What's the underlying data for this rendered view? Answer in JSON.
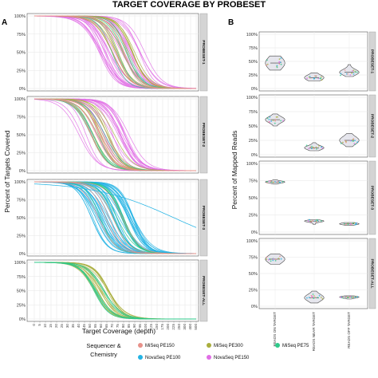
{
  "figure_title": "TARGET COVERAGE BY PROBESET",
  "panel_labels": {
    "a": "A",
    "b": "B"
  },
  "colors": {
    "MiSeq PE150": "#e8918a",
    "MiSeq PE300": "#a9ae3d",
    "MiSeq PE75": "#2ec98a",
    "NovaSeq PE100": "#23b3e4",
    "NovaSeq PE150": "#e06ee5"
  },
  "legend": {
    "title_line1": "Sequencer &",
    "title_line2": "Chemistry",
    "items": [
      "MiSeq PE150",
      "MiSeq PE300",
      "MiSeq PE75",
      "NovaSeq PE100",
      "NovaSeq PE150"
    ]
  },
  "chart_data": [
    {
      "panel": "A",
      "type": "line",
      "xlabel": "Target Coverage (depth)",
      "ylabel": "Percent of Targets Covered",
      "x_ticks": [
        "0",
        "5",
        "10",
        "15",
        "20",
        "25",
        "30",
        "35",
        "40",
        "45",
        "50",
        "55",
        "60",
        "65",
        "70",
        "75",
        "80",
        "85",
        "90",
        "95",
        "100",
        "125",
        "150",
        "175",
        "200",
        "225",
        "250",
        "300",
        "400",
        "500"
      ],
      "y_ticks": [
        "0%",
        "25%",
        "50%",
        "75%",
        "100%"
      ],
      "ylim": [
        0,
        100
      ],
      "facets": [
        {
          "strip": "PROBESET-1",
          "series": [
            {
              "name": "NovaSeq PE150",
              "count": 26,
              "x50_range": [
                11,
                20
              ],
              "steep_range": [
                0.55,
                0.8
              ]
            },
            {
              "name": "MiSeq PE300",
              "count": 12,
              "x50_range": [
                13.5,
                18
              ],
              "steep_range": [
                0.6,
                0.8
              ]
            },
            {
              "name": "MiSeq PE75",
              "count": 5,
              "x50_range": [
                13.5,
                17
              ],
              "steep_range": [
                0.6,
                0.8
              ]
            },
            {
              "name": "MiSeq PE150",
              "count": 5,
              "x50_range": [
                13,
                17
              ],
              "steep_range": [
                0.6,
                0.8
              ]
            }
          ]
        },
        {
          "strip": "PROBESET-2",
          "series": [
            {
              "name": "NovaSeq PE150",
              "count": 22,
              "x50_range": [
                8,
                17
              ],
              "steep_range": [
                0.55,
                0.8
              ]
            },
            {
              "name": "MiSeq PE300",
              "count": 10,
              "x50_range": [
                10,
                15
              ],
              "steep_range": [
                0.6,
                0.8
              ]
            },
            {
              "name": "MiSeq PE75",
              "count": 5,
              "x50_range": [
                10,
                14
              ],
              "steep_range": [
                0.6,
                0.8
              ]
            },
            {
              "name": "MiSeq PE150",
              "count": 5,
              "x50_range": [
                10,
                14
              ],
              "steep_range": [
                0.6,
                0.8
              ]
            }
          ]
        },
        {
          "strip": "PROBESET-3",
          "series": [
            {
              "name": "NovaSeq PE100",
              "count": 42,
              "x50_range": [
                10,
                18
              ],
              "steep_range": [
                0.55,
                0.8
              ]
            },
            {
              "name": "MiSeq PE75",
              "count": 8,
              "x50_range": [
                11,
                16
              ],
              "steep_range": [
                0.6,
                0.8
              ]
            },
            {
              "name": "MiSeq PE150",
              "count": 5,
              "x50_range": [
                11,
                16
              ],
              "steep_range": [
                0.6,
                0.8
              ]
            }
          ]
        },
        {
          "strip": "PROBESET-ALL",
          "series": [
            {
              "name": "MiSeq PE300",
              "count": 16,
              "x50_range": [
                10.5,
                13.5
              ],
              "steep_range": [
                0.6,
                0.8
              ]
            },
            {
              "name": "MiSeq PE75",
              "count": 8,
              "x50_range": [
                10.5,
                13
              ],
              "steep_range": [
                0.6,
                0.8
              ]
            }
          ]
        }
      ]
    },
    {
      "panel": "B",
      "type": "violin",
      "ylabel": "Percent of Mapped Reads",
      "categories": [
        "READS ON TARGET",
        "READS NEAR TARGET",
        "READS OFF TARGET"
      ],
      "y_ticks": [
        "0%",
        "25%",
        "50%",
        "75%",
        "100%"
      ],
      "ylim": [
        0,
        100
      ],
      "facets": [
        {
          "strip": "PROBESET-1",
          "violins": [
            {
              "median": 47,
              "q1": 40,
              "q3": 55,
              "min": 34,
              "max": 60
            },
            {
              "median": 20,
              "q1": 17,
              "q3": 24,
              "min": 14,
              "max": 29
            },
            {
              "median": 30,
              "q1": 27,
              "q3": 34,
              "min": 22,
              "max": 44
            }
          ]
        },
        {
          "strip": "PROBESET-2",
          "violins": [
            {
              "median": 61,
              "q1": 57,
              "q3": 64,
              "min": 50,
              "max": 71
            },
            {
              "median": 12,
              "q1": 10,
              "q3": 15,
              "min": 7,
              "max": 21
            },
            {
              "median": 25,
              "q1": 20,
              "q3": 29,
              "min": 14,
              "max": 37
            }
          ]
        },
        {
          "strip": "PROBESET-3",
          "violins": [
            {
              "median": 73,
              "q1": 72,
              "q3": 74,
              "min": 70,
              "max": 76
            },
            {
              "median": 16,
              "q1": 15,
              "q3": 17,
              "min": 11,
              "max": 18
            },
            {
              "median": 12,
              "q1": 11,
              "q3": 13,
              "min": 10,
              "max": 14
            }
          ]
        },
        {
          "strip": "PROBESET-ALL",
          "violins": [
            {
              "median": 72,
              "q1": 68,
              "q3": 76,
              "min": 64,
              "max": 80
            },
            {
              "median": 13,
              "q1": 10,
              "q3": 17,
              "min": 5,
              "max": 23
            },
            {
              "median": 14,
              "q1": 13,
              "q3": 15,
              "min": 11,
              "max": 16
            }
          ]
        }
      ]
    }
  ]
}
